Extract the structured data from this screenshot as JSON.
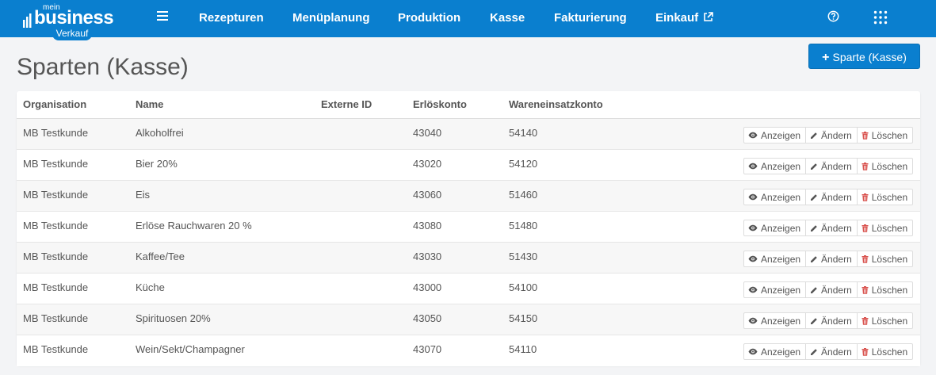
{
  "app": {
    "logo_mein": "mein",
    "logo_business": "business",
    "logo_badge": "Verkauf"
  },
  "nav": {
    "items": [
      {
        "label": "Rezepturen"
      },
      {
        "label": "Menüplanung"
      },
      {
        "label": "Produktion"
      },
      {
        "label": "Kasse"
      },
      {
        "label": "Fakturierung"
      },
      {
        "label": "Einkauf"
      }
    ]
  },
  "page": {
    "title": "Sparten (Kasse)",
    "add_button_label": "Sparte (Kasse)"
  },
  "table": {
    "columns": [
      "Organisation",
      "Name",
      "Externe ID",
      "Erlöskonto",
      "Wareneinsatzkonto"
    ],
    "rows": [
      {
        "org": "MB Testkunde",
        "name": "Alkoholfrei",
        "ext": "",
        "erloes": "43040",
        "waren": "54140"
      },
      {
        "org": "MB Testkunde",
        "name": "Bier 20%",
        "ext": "",
        "erloes": "43020",
        "waren": "54120"
      },
      {
        "org": "MB Testkunde",
        "name": "Eis",
        "ext": "",
        "erloes": "43060",
        "waren": "51460"
      },
      {
        "org": "MB Testkunde",
        "name": "Erlöse Rauchwaren 20 %",
        "ext": "",
        "erloes": "43080",
        "waren": "51480"
      },
      {
        "org": "MB Testkunde",
        "name": "Kaffee/Tee",
        "ext": "",
        "erloes": "43030",
        "waren": "51430"
      },
      {
        "org": "MB Testkunde",
        "name": "Küche",
        "ext": "",
        "erloes": "43000",
        "waren": "54100"
      },
      {
        "org": "MB Testkunde",
        "name": "Spirituosen 20%",
        "ext": "",
        "erloes": "43050",
        "waren": "54150"
      },
      {
        "org": "MB Testkunde",
        "name": "Wein/Sekt/Champagner",
        "ext": "",
        "erloes": "43070",
        "waren": "54110"
      }
    ],
    "actions": {
      "view_label": "Anzeigen",
      "edit_label": "Ändern",
      "delete_label": "Löschen"
    }
  },
  "icons": {
    "menu": "hamburger-icon",
    "external": "external-link-icon",
    "help": "question-circle-icon",
    "apps": "grid-icon",
    "add": "plus-icon",
    "view": "eye-icon",
    "edit": "pencil-icon",
    "delete": "trash-icon"
  },
  "colors": {
    "primary": "#0a7fcf",
    "delete_icon": "#d9534f",
    "page_bg": "#f3f4f6"
  }
}
